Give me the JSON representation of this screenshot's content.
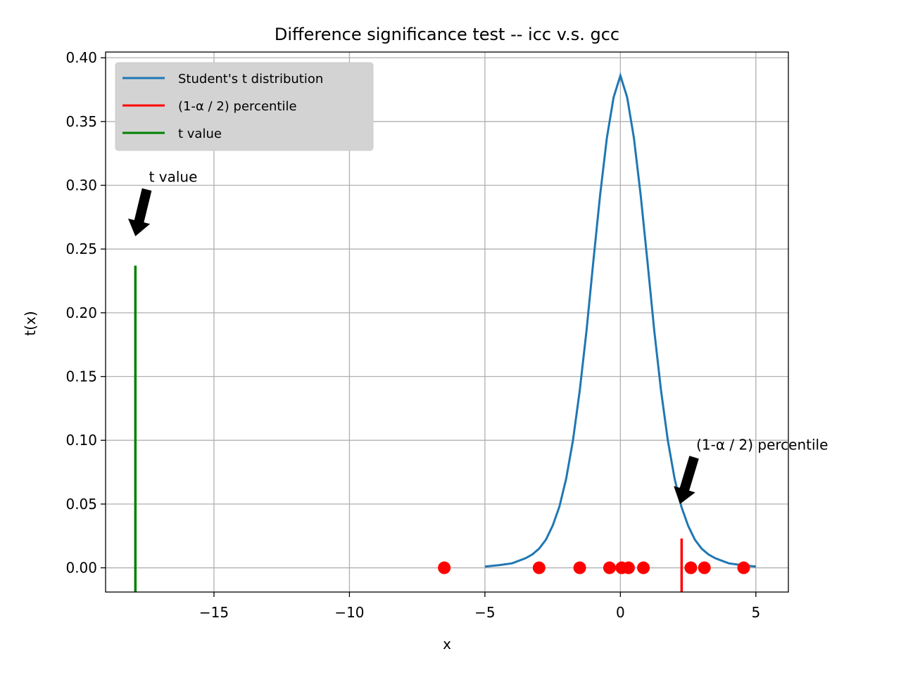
{
  "chart_data": {
    "type": "line",
    "title": "Difference significance test -- icc v.s. gcc",
    "xlabel": "x",
    "ylabel": "t(x)",
    "xlim": [
      -19,
      6.2
    ],
    "ylim": [
      -0.019,
      0.4045
    ],
    "grid": true,
    "legend_position": "top-left",
    "x_ticks": [
      -15,
      -10,
      -5,
      0,
      5
    ],
    "x_tick_labels": [
      "−15",
      "−10",
      "−5",
      "0",
      "5"
    ],
    "y_ticks": [
      0.0,
      0.05,
      0.1,
      0.15,
      0.2,
      0.25,
      0.3,
      0.35,
      0.4
    ],
    "y_tick_labels": [
      "0.00",
      "0.05",
      "0.10",
      "0.15",
      "0.20",
      "0.25",
      "0.30",
      "0.35",
      "0.40"
    ],
    "series": [
      {
        "name": "Student's t distribution",
        "kind": "line",
        "color": "#1f77b4",
        "x": [
          -5.0,
          -4.5,
          -4.0,
          -3.5,
          -3.25,
          -3.0,
          -2.75,
          -2.5,
          -2.25,
          -2.0,
          -1.75,
          -1.5,
          -1.25,
          -1.0,
          -0.75,
          -0.5,
          -0.25,
          0.0,
          0.25,
          0.5,
          0.75,
          1.0,
          1.25,
          1.5,
          1.75,
          2.0,
          2.25,
          2.5,
          2.75,
          3.0,
          3.25,
          3.5,
          4.0,
          4.5,
          5.0
        ],
        "y": [
          0.001,
          0.002,
          0.0035,
          0.0075,
          0.0105,
          0.015,
          0.022,
          0.033,
          0.048,
          0.07,
          0.1,
          0.139,
          0.186,
          0.24,
          0.292,
          0.337,
          0.369,
          0.386,
          0.369,
          0.337,
          0.292,
          0.24,
          0.186,
          0.139,
          0.1,
          0.07,
          0.048,
          0.033,
          0.022,
          0.015,
          0.0105,
          0.0075,
          0.0035,
          0.002,
          0.001
        ]
      },
      {
        "name": "(1-α / 2) percentile",
        "kind": "vline",
        "color": "#ff0000",
        "x": 2.26,
        "y_range": [
          -0.019,
          0.023
        ]
      },
      {
        "name": "t value",
        "kind": "vline",
        "color": "#008000",
        "x": -17.9,
        "y_range": [
          -0.019,
          0.237
        ]
      },
      {
        "name": "",
        "kind": "scatter",
        "color": "#ff0000",
        "x": [
          -6.5,
          -3.0,
          -1.5,
          -0.4,
          0.05,
          0.3,
          0.85,
          2.6,
          3.1,
          4.55
        ],
        "y": [
          0,
          0,
          0,
          0,
          0,
          0,
          0,
          0,
          0,
          0
        ]
      }
    ],
    "legend": [
      {
        "label": "Student's t distribution",
        "color": "#1f77b4"
      },
      {
        "label": "(1-α / 2) percentile",
        "color": "#ff0000"
      },
      {
        "label": "t value",
        "color": "#008000"
      }
    ],
    "annotations": [
      {
        "text": "t value",
        "text_x": -17.4,
        "text_y": 0.3,
        "arrow_to_x": -17.9,
        "arrow_to_y": 0.26
      },
      {
        "text": "(1-α / 2) percentile",
        "text_x": 2.8,
        "text_y": 0.09,
        "arrow_to_x": 2.2,
        "arrow_to_y": 0.05
      }
    ]
  }
}
